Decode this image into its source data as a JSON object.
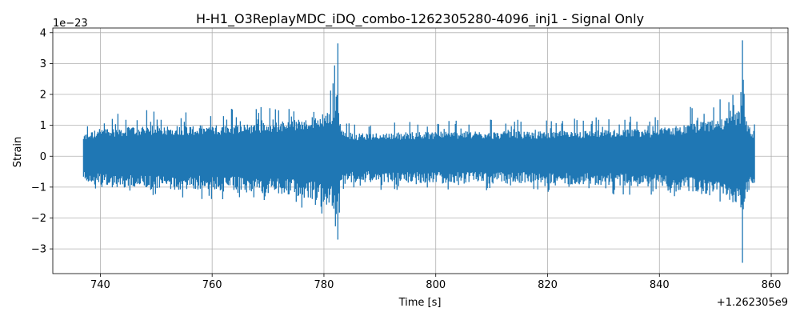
{
  "chart_data": {
    "type": "line",
    "title": "H-H1_O3ReplayMDC_iDQ_combo-1262305280-4096_inj1 - Signal Only",
    "xlabel": "Time [s]",
    "ylabel": "Strain",
    "x_offset_label": "+1.262305e9",
    "y_exponent_label": "1e−23",
    "xlim": [
      731.5,
      863
    ],
    "ylim": [
      -3.8,
      4.15
    ],
    "x_ticks": [
      740,
      760,
      780,
      800,
      820,
      840,
      860
    ],
    "x_tick_labels": [
      "740",
      "760",
      "780",
      "800",
      "820",
      "840",
      "860"
    ],
    "y_ticks": [
      -3,
      -2,
      -1,
      0,
      1,
      2,
      3,
      4
    ],
    "y_tick_labels": [
      "−3",
      "−2",
      "−1",
      "0",
      "1",
      "2",
      "3",
      "4"
    ],
    "grid": true,
    "color": "#1f77b4",
    "x_range": [
      737,
      857
    ],
    "envelope": [
      [
        737,
        0.75
      ],
      [
        740,
        0.95
      ],
      [
        745,
        1.0
      ],
      [
        750,
        1.05
      ],
      [
        755,
        1.05
      ],
      [
        760,
        1.05
      ],
      [
        765,
        1.1
      ],
      [
        770,
        1.15
      ],
      [
        775,
        1.25
      ],
      [
        778,
        1.35
      ],
      [
        780,
        1.45
      ],
      [
        781.5,
        1.6
      ],
      [
        782.3,
        2.5
      ],
      [
        783,
        0.9
      ],
      [
        785,
        0.8
      ],
      [
        790,
        0.8
      ],
      [
        800,
        0.85
      ],
      [
        810,
        0.85
      ],
      [
        820,
        0.85
      ],
      [
        830,
        0.9
      ],
      [
        840,
        0.95
      ],
      [
        845,
        1.1
      ],
      [
        850,
        1.25
      ],
      [
        853,
        1.4
      ],
      [
        854.5,
        1.6
      ],
      [
        855,
        1.9
      ],
      [
        855.8,
        1.1
      ],
      [
        857,
        0.85
      ]
    ],
    "spikes": [
      {
        "x": 782.5,
        "min": -2.7,
        "max": 3.65
      },
      {
        "x": 854.9,
        "min": -3.45,
        "max": 3.75
      }
    ]
  }
}
